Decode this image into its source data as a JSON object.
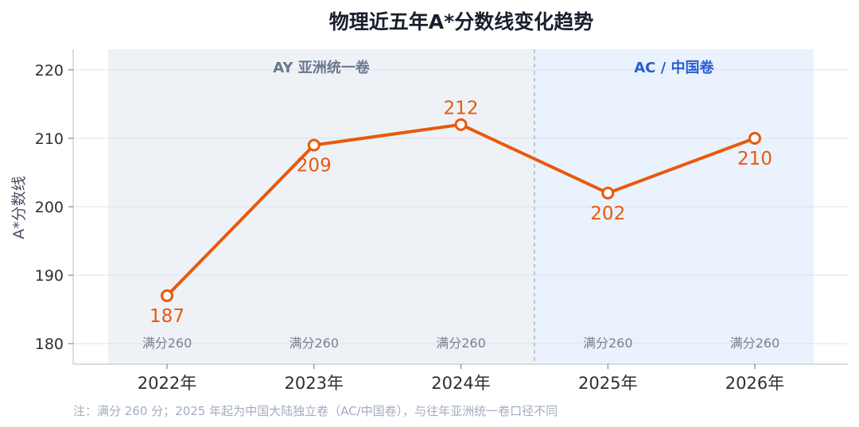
{
  "chart_data": {
    "type": "line",
    "title": "物理近五年A*分数线变化趋势",
    "ylabel": "A*分数线",
    "xlabel": "",
    "categories": [
      "2022年",
      "2023年",
      "2024年",
      "2025年",
      "2026年"
    ],
    "values": [
      187,
      209,
      212,
      202,
      210
    ],
    "value_labels": [
      "187",
      "209",
      "212",
      "202",
      "210"
    ],
    "full_score_labels": [
      "满分260",
      "满分260",
      "满分260",
      "满分260",
      "满分260"
    ],
    "ylim": [
      177,
      223
    ],
    "yticks": [
      180,
      190,
      200,
      210,
      220
    ],
    "ytick_labels": [
      "180",
      "190",
      "200",
      "210",
      "220"
    ],
    "grid": true,
    "regions": [
      {
        "label": "AY 亚洲统一卷",
        "from": "2022年",
        "to": "2024年",
        "color": "#eef2f7",
        "text_color": "#6b778c"
      },
      {
        "label": "AC / 中国卷",
        "from": "2025年",
        "to": "2026年",
        "color": "#eaf2fd",
        "text_color": "#2a5bd7"
      }
    ],
    "line_color": "#e8590c",
    "note": "注：满分 260 分；2025 年起为中国大陆独立卷（AC/中国卷），与往年亚洲统一卷口径不同"
  }
}
